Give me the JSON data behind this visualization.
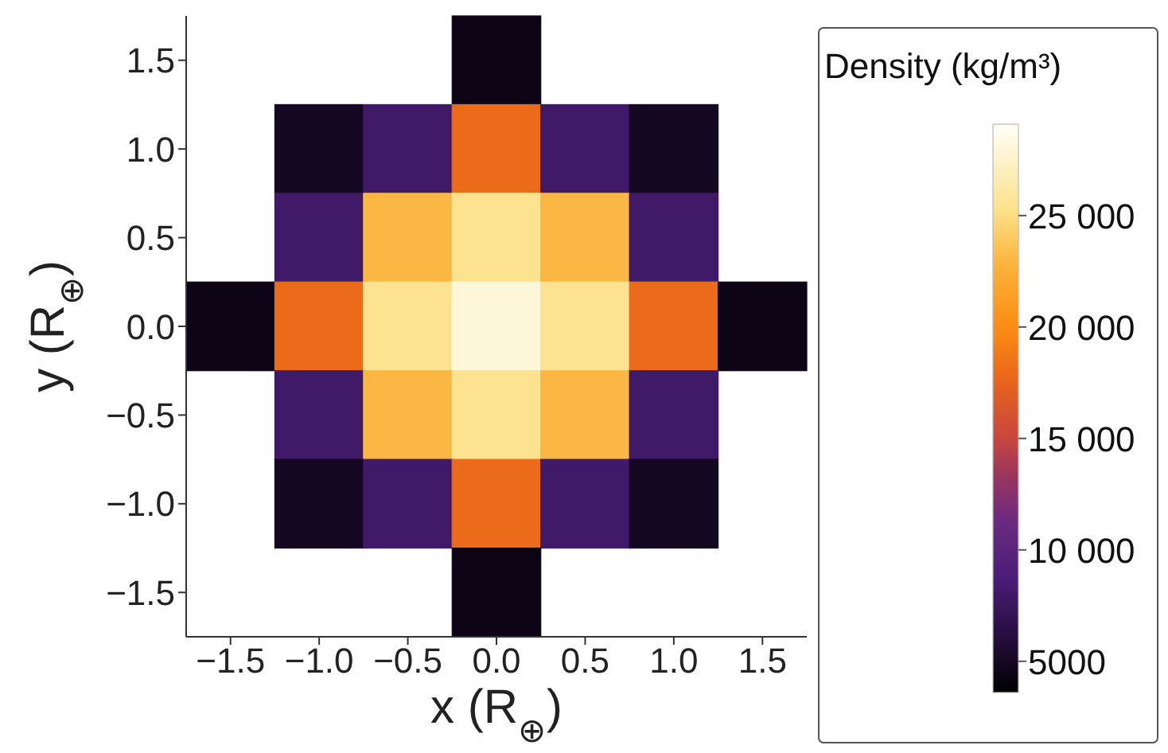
{
  "chart_data": {
    "type": "heatmap",
    "xlabel": "x (R$_{⊕}$)",
    "ylabel": "y (R$_{⊕}$)",
    "clabel": "Density (kg/m³)",
    "categories": [
      "−1.5",
      "−1.0",
      "−0.5",
      "0.0",
      "0.5",
      "1.0",
      "1.5"
    ],
    "y_categories": [
      "1.5",
      "1.0",
      "0.5",
      "0.0",
      "−0.5",
      "−1.0",
      "−1.5"
    ],
    "clim": [
      3600,
      29100
    ],
    "cticks": [
      5000,
      {
        "value": 10000,
        "label": "10 000"
      },
      {
        "value": 15000,
        "label": "15 000"
      },
      {
        "value": 20000,
        "label": "20 000"
      },
      {
        "value": 25000,
        "label": "25 000"
      }
    ],
    "cells": [
      [
        null,
        null,
        null,
        4500,
        null,
        null,
        null
      ],
      [
        null,
        5000,
        8000,
        18000,
        8000,
        5000,
        null
      ],
      [
        null,
        8000,
        23000,
        25500,
        23000,
        8000,
        null
      ],
      [
        4500,
        18000,
        25500,
        28000,
        25500,
        18000,
        4500
      ],
      [
        null,
        8000,
        23000,
        25500,
        23000,
        8000,
        null
      ],
      [
        null,
        5000,
        8000,
        18000,
        8000,
        5000,
        null
      ],
      [
        null,
        null,
        null,
        4500,
        null,
        null,
        null
      ]
    ]
  }
}
